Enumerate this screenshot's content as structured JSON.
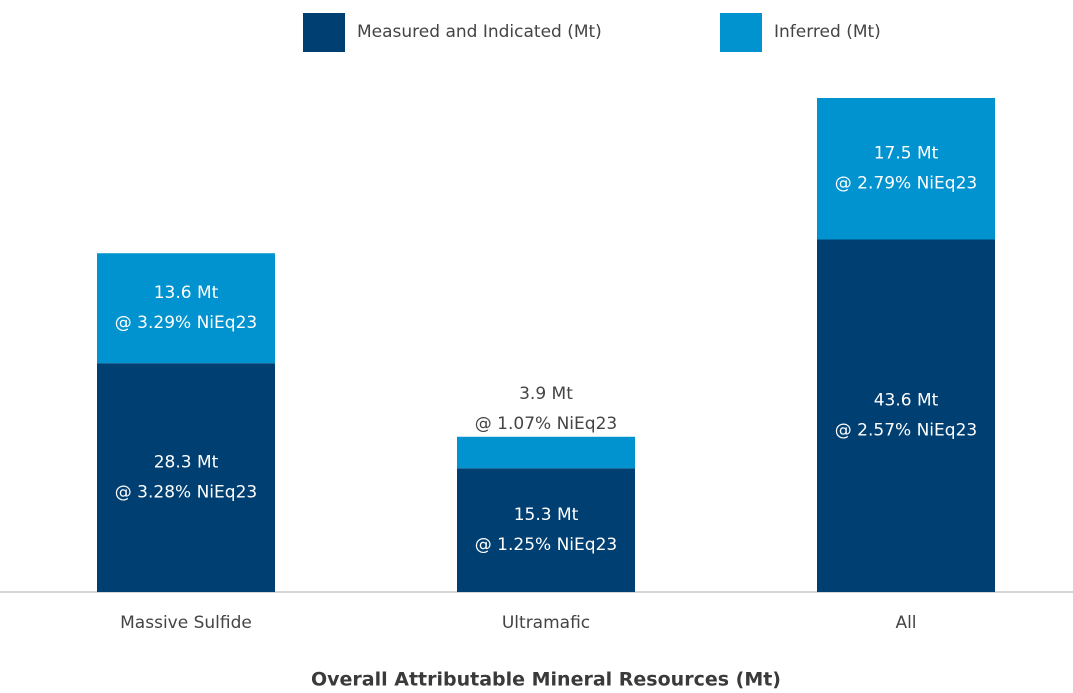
{
  "chart_data": {
    "type": "stacked_bar",
    "title": "Overall Attributable Mineral Resources (Mt)",
    "categories": [
      "Massive Sulfide",
      "Ultramafic",
      "All"
    ],
    "ylim": [
      0,
      61.1
    ],
    "series": [
      {
        "name": "Measured and Indicated (Mt)",
        "color": "#003f72",
        "values": [
          28.3,
          15.3,
          43.6
        ],
        "value_labels": [
          "28.3 Mt",
          "15.3 Mt",
          "43.6 Mt"
        ],
        "grade_labels": [
          "@ 3.28% NiEq23",
          "@ 1.25% NiEq23",
          "@ 2.57% NiEq23"
        ]
      },
      {
        "name": "Inferred (Mt)",
        "color": "#0093d0",
        "values": [
          13.6,
          3.9,
          17.5
        ],
        "value_labels": [
          "13.6 Mt",
          "3.9 Mt",
          "17.5 Mt"
        ],
        "grade_labels": [
          "@ 3.29% NiEq23",
          "@ 1.07% NiEq23",
          "@ 2.79% NiEq23"
        ]
      }
    ]
  }
}
